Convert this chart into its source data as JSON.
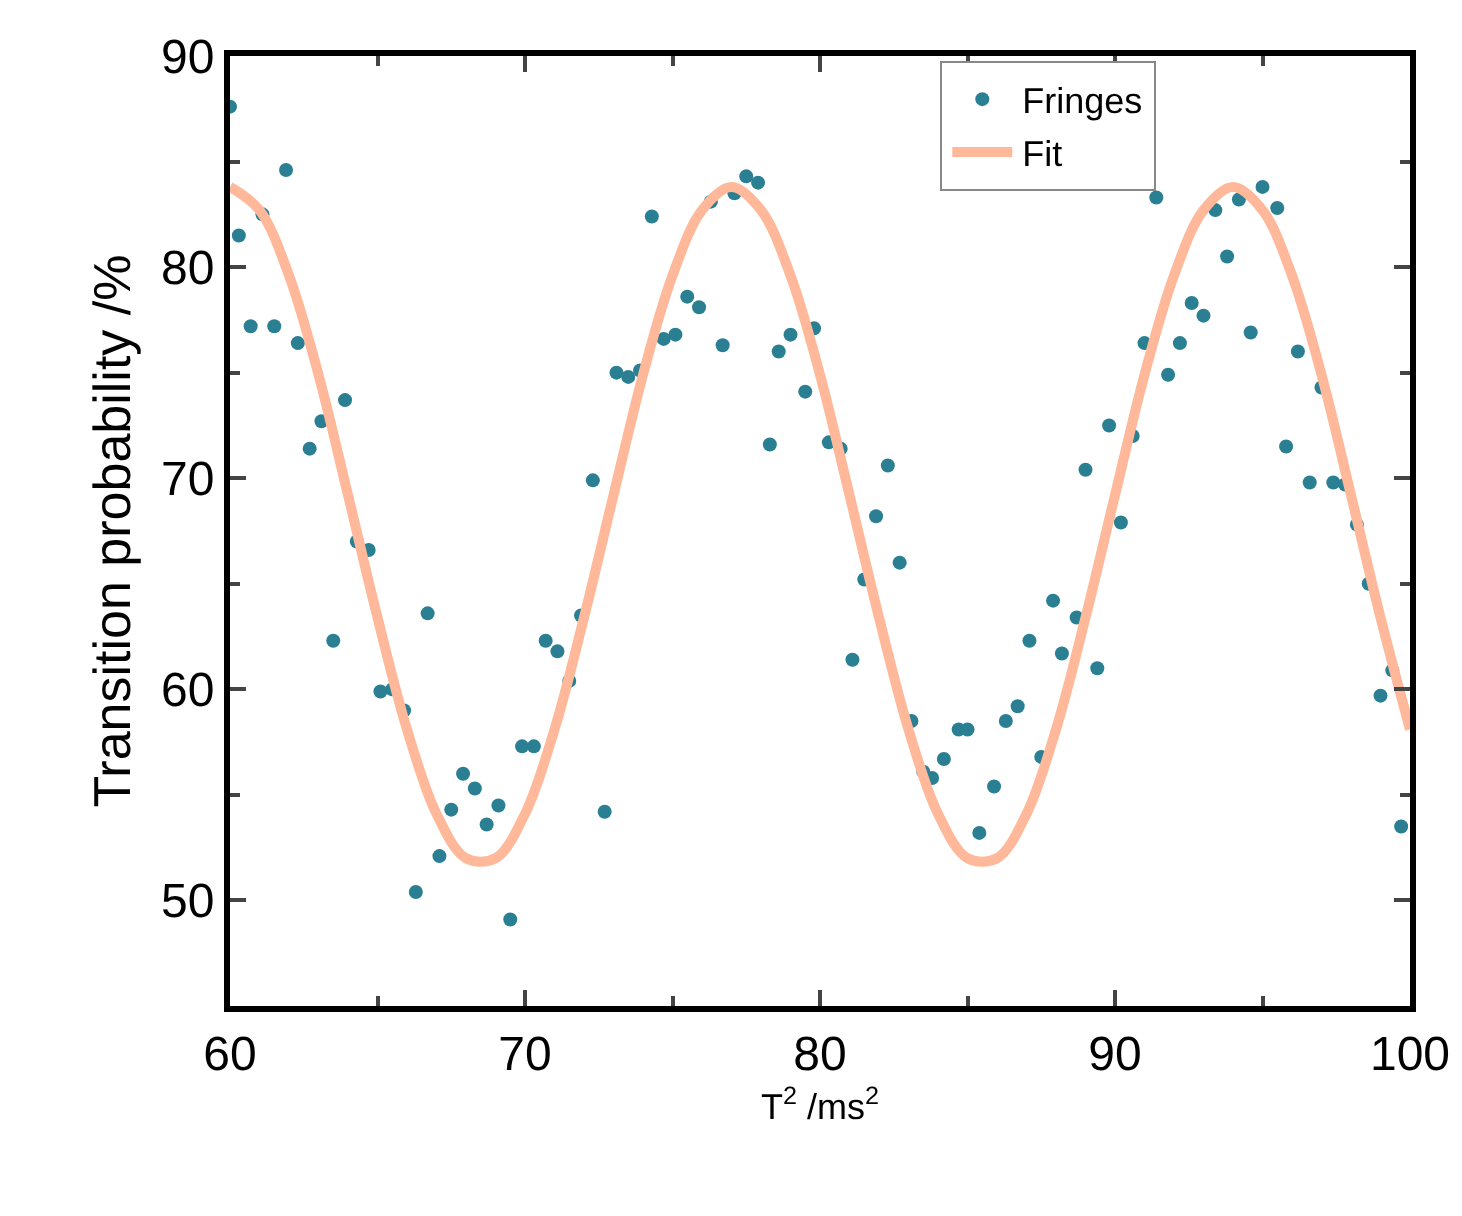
{
  "chart_data": {
    "type": "scatter",
    "xlabel": "T$^{2}$ /ms$^{2}$",
    "ylabel": "Transition probability /%",
    "xlim": [
      60,
      100
    ],
    "xticks": [
      60,
      70,
      80,
      90,
      100
    ],
    "ylim": [
      45,
      90
    ],
    "yticks": [
      50,
      60,
      70,
      80,
      90
    ],
    "grid": false,
    "legend": "top right",
    "marker": "circle",
    "series": [
      {
        "name": "Fringes",
        "type": "scatter",
        "color": "#2a7f93",
        "x": [
          60.0,
          60.3,
          61.1,
          61.9,
          60.7,
          61.5,
          62.3,
          63.9,
          63.1,
          62.7,
          64.3,
          64.7,
          66.7,
          63.5,
          65.1,
          65.5,
          65.9,
          66.3,
          67.1,
          67.5,
          67.9,
          68.3,
          68.7,
          69.1,
          69.5,
          69.9,
          70.3,
          72.7,
          70.7,
          71.1,
          71.5,
          71.9,
          72.3,
          73.1,
          73.5,
          73.9,
          74.3,
          74.7,
          75.1,
          75.5,
          75.9,
          76.3,
          76.7,
          77.1,
          77.5,
          77.9,
          78.3,
          78.6,
          79.0,
          79.5,
          79.8,
          80.3,
          80.7,
          81.1,
          81.5,
          81.9,
          82.3,
          82.7,
          83.1,
          83.5,
          83.8,
          84.2,
          84.7,
          85.0,
          85.4,
          85.9,
          86.3,
          86.7,
          87.1,
          87.5,
          87.9,
          88.2,
          88.7,
          89.0,
          89.4,
          89.8,
          90.2,
          90.6,
          91.0,
          91.4,
          91.8,
          92.2,
          92.6,
          93.0,
          93.4,
          93.8,
          94.2,
          94.6,
          95.0,
          95.5,
          95.8,
          96.2,
          96.6,
          97.0,
          97.4,
          97.8,
          98.2,
          98.6,
          99.0,
          99.4,
          99.7
        ],
        "values": [
          87.6,
          81.5,
          82.5,
          84.6,
          77.2,
          77.2,
          76.4,
          73.7,
          72.7,
          71.4,
          67.0,
          66.6,
          63.6,
          62.3,
          59.9,
          60.0,
          59.0,
          50.4,
          52.1,
          54.3,
          56.0,
          55.3,
          53.6,
          54.5,
          49.1,
          57.3,
          57.3,
          54.2,
          62.3,
          61.8,
          60.4,
          63.5,
          69.9,
          75.0,
          74.8,
          75.1,
          82.4,
          76.6,
          76.8,
          78.6,
          78.1,
          83.1,
          76.3,
          83.5,
          84.3,
          84.0,
          71.6,
          76.0,
          76.8,
          74.1,
          77.1,
          71.7,
          71.4,
          61.4,
          65.2,
          68.2,
          70.6,
          66.0,
          58.5,
          56.1,
          55.8,
          56.7,
          58.1,
          58.1,
          53.2,
          55.4,
          58.5,
          59.2,
          62.3,
          56.8,
          64.2,
          61.7,
          63.4,
          70.4,
          61.0,
          72.5,
          67.9,
          72.0,
          76.4,
          83.3,
          74.9,
          76.4,
          78.3,
          77.7,
          82.7,
          80.5,
          83.2,
          76.9,
          83.8,
          82.8,
          71.5,
          76.0,
          69.8,
          74.3,
          69.8,
          69.7,
          67.8,
          65.0,
          59.7,
          60.9,
          53.5
        ]
      },
      {
        "name": "Fit",
        "type": "line",
        "color": "#ffb899",
        "line_style": "solid",
        "marker": "none",
        "x": [
          60,
          61,
          62,
          63,
          64,
          65,
          66,
          67,
          68,
          69,
          70,
          71,
          72,
          73,
          74,
          75,
          76,
          77,
          78,
          79,
          80,
          81,
          82,
          83,
          84,
          85,
          86,
          87,
          88,
          89,
          90,
          91,
          92,
          93,
          94,
          95,
          96,
          97,
          98,
          99,
          100
        ],
        "values": [
          83.8,
          82.7,
          79.6,
          74.9,
          69.2,
          63.4,
          58.1,
          54.1,
          52.0,
          52.0,
          54.1,
          58.1,
          63.4,
          69.2,
          74.9,
          79.6,
          82.7,
          83.8,
          82.7,
          79.6,
          74.9,
          69.2,
          63.4,
          58.1,
          54.1,
          52.0,
          52.0,
          54.1,
          58.1,
          63.4,
          69.2,
          74.9,
          79.6,
          82.7,
          83.8,
          82.7,
          79.6,
          74.9,
          69.2,
          63.4,
          58.1
        ]
      }
    ]
  }
}
